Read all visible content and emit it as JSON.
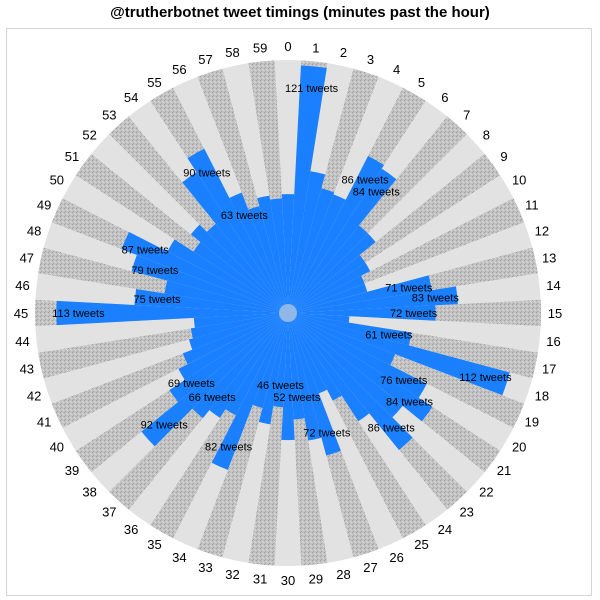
{
  "title": "@trutherbotnet tweet timings (minutes past the hour)",
  "chart_data": {
    "type": "radial-bar",
    "title": "@trutherbotnet tweet timings (minutes past the hour)",
    "categories": [
      "0",
      "1",
      "2",
      "3",
      "4",
      "5",
      "6",
      "7",
      "8",
      "9",
      "10",
      "11",
      "12",
      "13",
      "14",
      "15",
      "16",
      "17",
      "18",
      "19",
      "20",
      "21",
      "22",
      "23",
      "24",
      "25",
      "26",
      "27",
      "28",
      "29",
      "30",
      "31",
      "32",
      "33",
      "34",
      "35",
      "36",
      "37",
      "38",
      "39",
      "40",
      "41",
      "42",
      "43",
      "44",
      "45",
      "46",
      "47",
      "48",
      "49",
      "50",
      "51",
      "52",
      "53",
      "54",
      "55",
      "56",
      "57",
      "58",
      "59"
    ],
    "values": [
      58,
      121,
      70,
      63,
      62,
      86,
      84,
      55,
      55,
      45,
      45,
      40,
      40,
      71,
      83,
      72,
      30,
      61,
      112,
      56,
      76,
      84,
      72,
      86,
      63,
      48,
      42,
      72,
      63,
      52,
      62,
      46,
      55,
      48,
      82,
      56,
      61,
      66,
      92,
      69,
      60,
      55,
      50,
      48,
      46,
      113,
      75,
      61,
      79,
      87,
      66,
      55,
      61,
      56,
      82,
      90,
      63,
      54,
      58,
      56
    ],
    "labeled_values": [
      1,
      5,
      6,
      13,
      14,
      15,
      17,
      18,
      20,
      21,
      23,
      27,
      29,
      31,
      34,
      37,
      38,
      39,
      45,
      46,
      48,
      49,
      55,
      56
    ],
    "label_suffix": " tweets",
    "value_axis_max": 121,
    "colors": {
      "bar": "#1a80ff",
      "band_light": "#e2e2e2",
      "band_dark": "#bdbdbd",
      "hub": "#8fb8e8"
    }
  }
}
